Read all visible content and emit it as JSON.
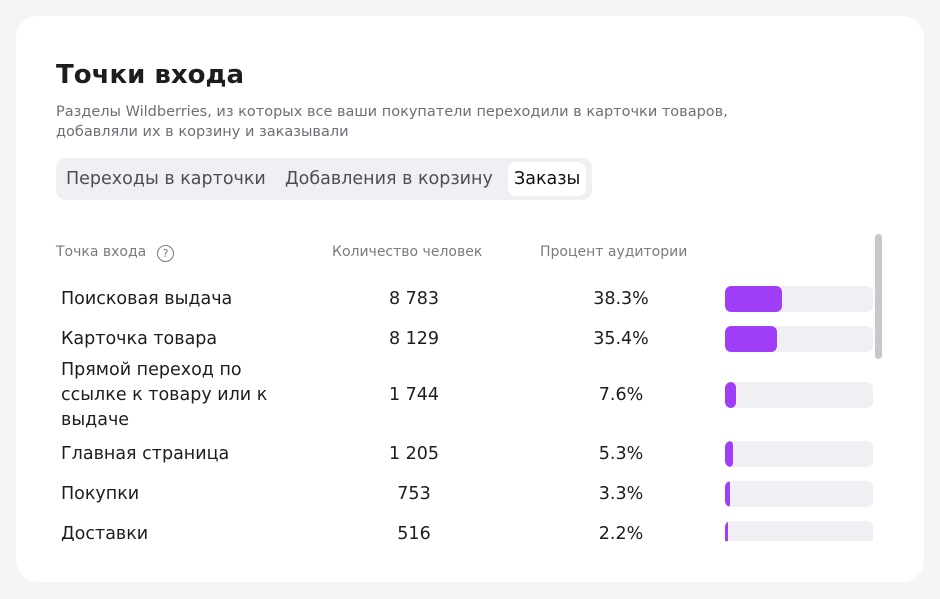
{
  "header": {
    "title": "Точки входа",
    "subtitle": "Разделы Wildberries, из которых все ваши покупатели переходили в карточки товаров, добавляли их в корзину и заказывали"
  },
  "tabs": [
    {
      "label": "Переходы в карточки",
      "active": false
    },
    {
      "label": "Добавления в корзину",
      "active": false
    },
    {
      "label": "Заказы",
      "active": true
    }
  ],
  "table": {
    "columns": [
      "Точка входа",
      "Количество человек",
      "Процент аудитории"
    ],
    "bar_xlim": [
      0,
      100
    ],
    "bar_color": "#9f3ef6",
    "rows": [
      {
        "name": "Поисковая выдача",
        "count": "8 783",
        "percent": {
          "value": 38.3,
          "label": "38.3%"
        }
      },
      {
        "name": "Карточка товара",
        "count": "8 129",
        "percent": {
          "value": 35.4,
          "label": "35.4%"
        }
      },
      {
        "name": "Прямой переход по ссылке к товару или к выдаче",
        "count": "1 744",
        "percent": {
          "value": 7.6,
          "label": "7.6%"
        }
      },
      {
        "name": "Главная страница",
        "count": "1 205",
        "percent": {
          "value": 5.3,
          "label": "5.3%"
        }
      },
      {
        "name": "Покупки",
        "count": "753",
        "percent": {
          "value": 3.3,
          "label": "3.3%"
        }
      },
      {
        "name": "Доставки",
        "count": "516",
        "percent": {
          "value": 2.2,
          "label": "2.2%"
        }
      }
    ]
  }
}
